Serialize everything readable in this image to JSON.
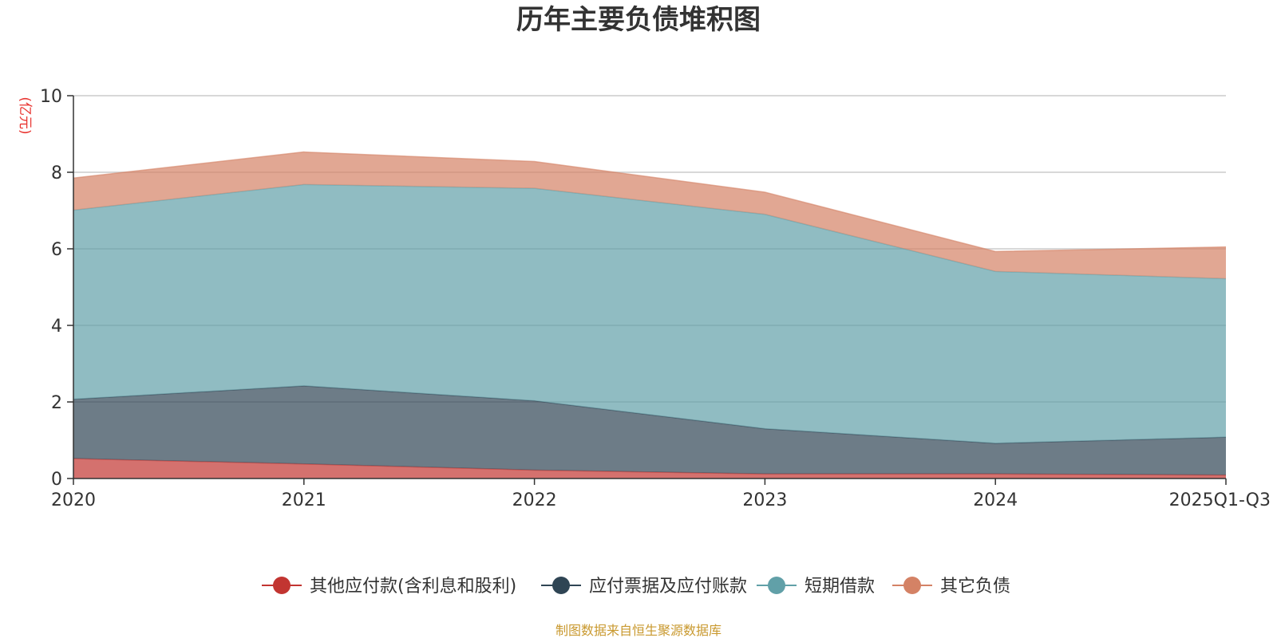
{
  "chart_data": {
    "type": "area",
    "stacked": true,
    "title": "历年主要负债堆积图",
    "ylabel": "(亿元)",
    "ylim": [
      0,
      10
    ],
    "yticks": [
      0,
      2,
      4,
      6,
      8,
      10
    ],
    "categories": [
      "2020",
      "2021",
      "2022",
      "2023",
      "2024",
      "2025Q1-Q3"
    ],
    "grid": true,
    "legend_position": "bottom",
    "series": [
      {
        "name": "其他应付款(含利息和股利)",
        "values": [
          0.52,
          0.38,
          0.22,
          0.12,
          0.12,
          0.09
        ],
        "color": "#c23531"
      },
      {
        "name": "应付票据及应付账款",
        "values": [
          1.55,
          2.04,
          1.81,
          1.18,
          0.8,
          0.99
        ],
        "color": "#2f4554"
      },
      {
        "name": "短期借款",
        "values": [
          4.94,
          5.26,
          5.55,
          5.6,
          4.49,
          4.14
        ],
        "color": "#61a0a8"
      },
      {
        "name": "其它负债",
        "values": [
          0.84,
          0.85,
          0.7,
          0.58,
          0.52,
          0.83
        ],
        "color": "#d48265"
      }
    ],
    "source": "制图数据来自恒生聚源数据库"
  }
}
